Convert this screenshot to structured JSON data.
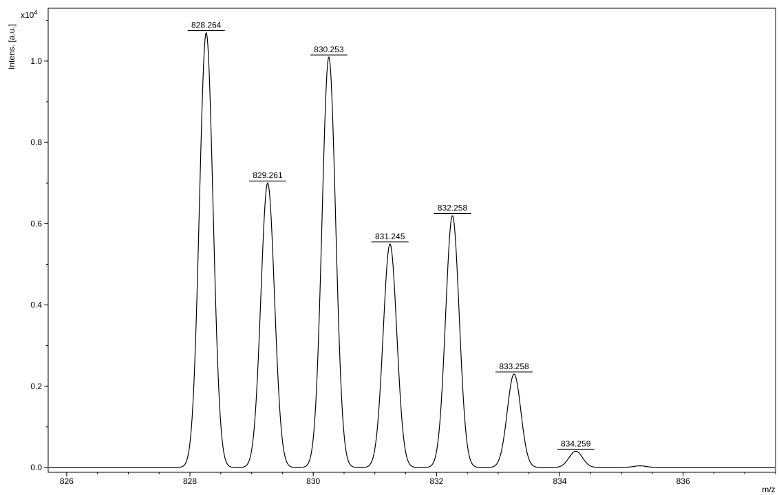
{
  "chart_data": {
    "type": "line",
    "title": "",
    "xlabel": "m/z",
    "ylabel": "Intens. [a.u.]",
    "y_multiplier_base": "x10",
    "y_multiplier_exp": "4",
    "xlim": [
      825.7,
      837.5
    ],
    "ylim": [
      0,
      1.13
    ],
    "x_ticks": [
      826,
      828,
      830,
      832,
      834,
      836
    ],
    "x_tick_labels": [
      "826",
      "828",
      "830",
      "832",
      "834",
      "836"
    ],
    "x_minor_step": 0.5,
    "y_ticks": [
      0.0,
      0.2,
      0.4,
      0.6,
      0.8,
      1.0
    ],
    "y_tick_labels": [
      "0.0",
      "0.2",
      "0.4",
      "0.6",
      "0.8",
      "1.0"
    ],
    "y_minor_step": 0.1,
    "grid": false,
    "line_color": "#000000",
    "peaks": [
      {
        "x": 828.264,
        "y": 1.07,
        "label": "828.264"
      },
      {
        "x": 829.261,
        "y": 0.7,
        "label": "829.261"
      },
      {
        "x": 830.253,
        "y": 1.01,
        "label": "830.253"
      },
      {
        "x": 831.245,
        "y": 0.55,
        "label": "831.245"
      },
      {
        "x": 832.258,
        "y": 0.62,
        "label": "832.258"
      },
      {
        "x": 833.258,
        "y": 0.23,
        "label": "833.258"
      },
      {
        "x": 834.259,
        "y": 0.04,
        "label": "834.259"
      },
      {
        "x": 835.3,
        "y": 0.004,
        "label": ""
      }
    ],
    "peak_width": 0.11
  }
}
